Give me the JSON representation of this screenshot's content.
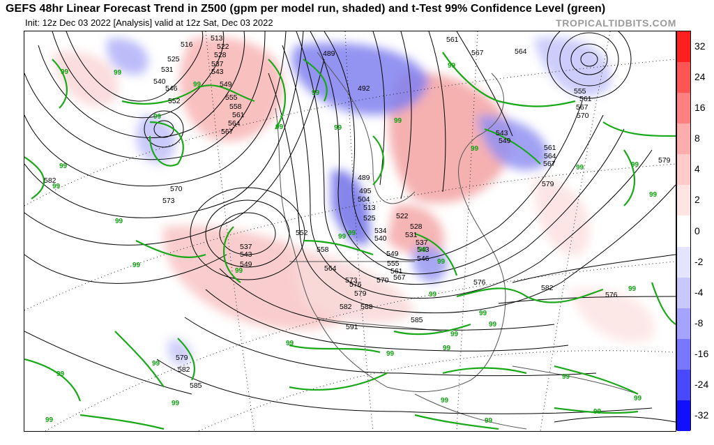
{
  "title": "GEFS 48hr Linear Forecast Trend in Z500 (gpm per model run, shaded) and t-Test 99% Confidence Level (green)",
  "subtitle": "Init: 12z Dec 03 2022   [Analysis]   valid at 12z Sat, Dec 03 2022",
  "watermark": "TROPICALTIDBITS.COM",
  "colorbar": {
    "ticks": [
      "32",
      "24",
      "16",
      "8",
      "4",
      "2",
      "0",
      "-2",
      "-4",
      "-8",
      "-16",
      "-24",
      "-32"
    ],
    "colors": [
      "#ff1f1f",
      "#ff5454",
      "#ff8080",
      "#ffacac",
      "#ffcaca",
      "#ffe4e4",
      "#ffffff",
      "#e4e4ff",
      "#c8c8ff",
      "#a4a4ff",
      "#7878ff",
      "#4848ff",
      "#1010ff"
    ]
  },
  "map": {
    "contour_color": "#000000",
    "confidence_color": "#10a010",
    "contour_labels": [
      "513",
      "516",
      "522",
      "528",
      "525",
      "531",
      "537",
      "543",
      "540",
      "546",
      "549",
      "552",
      "555",
      "558",
      "561",
      "564",
      "567",
      "489",
      "492",
      "561",
      "567",
      "564",
      "555",
      "561",
      "567",
      "570",
      "543",
      "549",
      "561",
      "564",
      "567",
      "579",
      "582",
      "570",
      "573",
      "489",
      "495",
      "504",
      "513",
      "525",
      "522",
      "528",
      "531",
      "534",
      "540",
      "537",
      "543",
      "546",
      "549",
      "555",
      "561",
      "567",
      "537",
      "543",
      "549",
      "552",
      "558",
      "564",
      "570",
      "573",
      "576",
      "579",
      "582",
      "588",
      "591",
      "585",
      "576",
      "579",
      "582",
      "576",
      "579",
      "582",
      "585"
    ],
    "confidence_labels": [
      "99",
      "99",
      "99",
      "99",
      "99",
      "99",
      "99",
      "99",
      "99",
      "99",
      "99",
      "99",
      "99",
      "99",
      "99",
      "99",
      "99",
      "99",
      "99",
      "99",
      "99",
      "99",
      "99",
      "99",
      "99",
      "99",
      "99",
      "99",
      "99",
      "99",
      "99",
      "99",
      "99",
      "99",
      "99",
      "99",
      "99",
      "99",
      "99"
    ]
  }
}
